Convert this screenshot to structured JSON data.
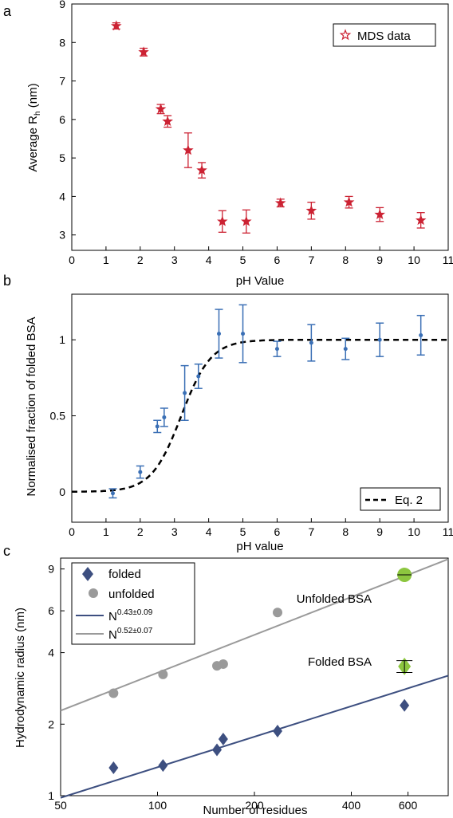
{
  "panels": {
    "a": "a",
    "b": "b",
    "c": "c"
  },
  "chart_data": [
    {
      "type": "scatter",
      "panel": "a",
      "xlabel": "pH Value",
      "ylabel": "Average R",
      "ylabel_sub": "h",
      "ylabel_unit": " (nm)",
      "xlim": [
        0,
        11
      ],
      "ylim": [
        2.6,
        9
      ],
      "xticks": [
        0,
        1,
        2,
        3,
        4,
        5,
        6,
        7,
        8,
        9,
        10,
        11
      ],
      "yticks": [
        3,
        4,
        5,
        6,
        7,
        8,
        9
      ],
      "series": [
        {
          "name": "MDS data",
          "color": "#cc2233",
          "marker": "star",
          "x": [
            1.3,
            2.1,
            2.6,
            2.8,
            3.4,
            3.8,
            4.4,
            5.1,
            6.1,
            7.0,
            8.1,
            9.0,
            10.2
          ],
          "y": [
            8.43,
            7.75,
            6.27,
            5.95,
            5.2,
            4.68,
            3.35,
            3.35,
            3.83,
            3.63,
            3.85,
            3.53,
            3.38
          ],
          "err": [
            0.08,
            0.1,
            0.12,
            0.15,
            0.45,
            0.2,
            0.28,
            0.3,
            0.1,
            0.22,
            0.15,
            0.18,
            0.2
          ]
        }
      ],
      "legend": "top-right"
    },
    {
      "type": "scatter",
      "panel": "b",
      "xlabel": "pH value",
      "ylabel": "Normalised fraction of folded BSA",
      "xlim": [
        0,
        11
      ],
      "ylim": [
        -0.2,
        1.3
      ],
      "xticks": [
        0,
        1,
        2,
        3,
        4,
        5,
        6,
        7,
        8,
        9,
        10,
        11
      ],
      "ytick_values": [
        0,
        0.5,
        1
      ],
      "ytick_labels": [
        "0",
        "0.5",
        "1"
      ],
      "series": [
        {
          "name": "",
          "color": "#3a6fb5",
          "marker": "dot",
          "x": [
            1.2,
            2.0,
            2.5,
            2.7,
            3.3,
            3.7,
            4.3,
            5.0,
            6.0,
            7.0,
            8.0,
            9.0,
            10.2
          ],
          "y": [
            -0.01,
            0.13,
            0.43,
            0.49,
            0.65,
            0.76,
            1.04,
            1.04,
            0.94,
            0.98,
            0.94,
            1.0,
            1.03
          ],
          "err": [
            0.03,
            0.04,
            0.04,
            0.06,
            0.18,
            0.08,
            0.16,
            0.19,
            0.05,
            0.12,
            0.07,
            0.11,
            0.13
          ]
        },
        {
          "name": "Eq. 2",
          "type": "line",
          "style": "dashed",
          "color": "#000000",
          "model": "sigmoid",
          "midpoint": 3.2,
          "slope": 2.3
        }
      ],
      "legend": "bottom-right"
    },
    {
      "type": "scatter",
      "panel": "c",
      "xlabel": "Number of residues",
      "ylabel": "Hydrodynamic radius (nm)",
      "xscale": "log",
      "yscale": "log",
      "xlim": [
        50,
        800
      ],
      "ylim": [
        1,
        10
      ],
      "xticks": [
        50,
        100,
        200,
        400,
        600
      ],
      "yticks": [
        1,
        2,
        4,
        6,
        9
      ],
      "series": [
        {
          "name": "folded",
          "color": "#3d4f80",
          "marker": "diamond",
          "x": [
            73,
            104,
            153,
            160,
            236,
            585
          ],
          "y": [
            1.31,
            1.34,
            1.56,
            1.73,
            1.87,
            2.4
          ]
        },
        {
          "name": "unfolded",
          "color": "#9a9a9a",
          "marker": "circle",
          "x": [
            73,
            104,
            153,
            160,
            236
          ],
          "y": [
            2.7,
            3.24,
            3.52,
            3.58,
            5.9
          ]
        },
        {
          "name": "N",
          "superscript": "0.43±0.09",
          "type": "line",
          "color": "#3d4f80",
          "exponent": 0.43,
          "x": [
            50,
            800
          ],
          "y": [
            0.98,
            3.2
          ]
        },
        {
          "name": "N",
          "superscript": "0.52±0.07",
          "type": "line",
          "color": "#9a9a9a",
          "exponent": 0.52,
          "x": [
            50,
            800
          ],
          "y": [
            2.28,
            9.9
          ]
        }
      ],
      "highlights": [
        {
          "label": "Unfolded BSA",
          "x": 585,
          "y": 8.5,
          "color": "#8cc63f",
          "marker": "circle"
        },
        {
          "label": "Folded BSA",
          "x": 585,
          "y": 3.5,
          "color": "#8cc63f",
          "marker": "diamond",
          "err": 0.2
        }
      ],
      "legend": "top-left"
    }
  ]
}
